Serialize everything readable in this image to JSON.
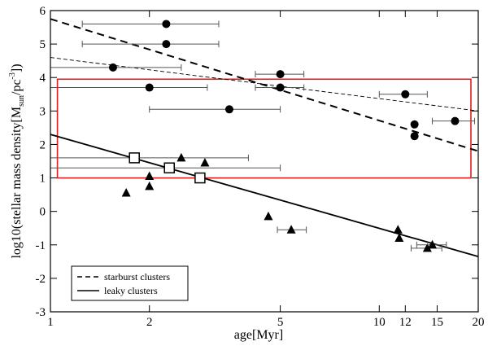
{
  "chart_data": {
    "type": "scatter",
    "xscale": "log",
    "xlabel": "age[Myr]",
    "ylabel": "log10(stellar mass density[M",
    "ylabel_sub": "sun",
    "ylabel_mid": "/pc",
    "ylabel_sup": "-3",
    "ylabel_end": "])",
    "xlim": [
      1,
      20
    ],
    "ylim": [
      -3,
      6
    ],
    "xticks": [
      {
        "value": 1,
        "label": "1"
      },
      {
        "value": 2,
        "label": "2"
      },
      {
        "value": 5,
        "label": "5"
      },
      {
        "value": 10,
        "label": "10"
      },
      {
        "value": 12,
        "label": "12"
      },
      {
        "value": 15,
        "label": "15"
      },
      {
        "value": 20,
        "label": "20"
      }
    ],
    "yticks": [
      {
        "value": -3,
        "label": "-3"
      },
      {
        "value": -2,
        "label": "-2"
      },
      {
        "value": -1,
        "label": "-1"
      },
      {
        "value": 0,
        "label": "0"
      },
      {
        "value": 1,
        "label": "1"
      },
      {
        "value": 2,
        "label": "2"
      },
      {
        "value": 3,
        "label": "3"
      },
      {
        "value": 4,
        "label": "4"
      },
      {
        "value": 5,
        "label": "5"
      },
      {
        "value": 6,
        "label": "6"
      }
    ],
    "series": [
      {
        "name": "circles",
        "marker": "circle",
        "points": [
          {
            "x": 2.25,
            "y": 5.6,
            "xerr": [
              1.25,
              3.25
            ]
          },
          {
            "x": 2.25,
            "y": 5.0,
            "xerr": [
              1.25,
              3.25
            ]
          },
          {
            "x": 1.55,
            "y": 4.3,
            "xerr": [
              1.0,
              2.5
            ]
          },
          {
            "x": 2.0,
            "y": 3.7,
            "xerr": [
              1.0,
              3.0
            ]
          },
          {
            "x": 3.5,
            "y": 3.05,
            "xerr": [
              2.0,
              5.0
            ]
          },
          {
            "x": 5.0,
            "y": 4.1,
            "xerr": [
              4.2,
              5.9
            ]
          },
          {
            "x": 5.0,
            "y": 3.7,
            "xerr": [
              4.2,
              5.9
            ]
          },
          {
            "x": 12.0,
            "y": 3.5,
            "xerr": [
              10.0,
              14.0
            ]
          },
          {
            "x": 12.8,
            "y": 2.6
          },
          {
            "x": 12.8,
            "y": 2.25
          },
          {
            "x": 17.0,
            "y": 2.7,
            "xerr": [
              14.5,
              19.5
            ]
          }
        ]
      },
      {
        "name": "squares",
        "marker": "square",
        "points": [
          {
            "x": 1.8,
            "y": 1.6,
            "xerr": [
              1.0,
              4.0
            ]
          },
          {
            "x": 2.3,
            "y": 1.3,
            "xerr": [
              1.0,
              5.0
            ]
          },
          {
            "x": 2.85,
            "y": 1.0
          }
        ]
      },
      {
        "name": "triangles",
        "marker": "triangle",
        "points": [
          {
            "x": 1.7,
            "y": 0.55
          },
          {
            "x": 2.0,
            "y": 1.05
          },
          {
            "x": 2.0,
            "y": 0.75
          },
          {
            "x": 2.5,
            "y": 1.6
          },
          {
            "x": 2.95,
            "y": 1.45
          },
          {
            "x": 4.6,
            "y": -0.15
          },
          {
            "x": 5.4,
            "y": -0.55,
            "xerr": [
              4.9,
              6.0
            ]
          },
          {
            "x": 11.4,
            "y": -0.55
          },
          {
            "x": 11.5,
            "y": -0.8
          },
          {
            "x": 14.0,
            "y": -1.1,
            "xerr": [
              12.5,
              15.5
            ]
          },
          {
            "x": 14.5,
            "y": -1.0,
            "xerr": [
              13.0,
              16.0
            ]
          }
        ]
      }
    ],
    "lines": [
      {
        "name": "starburst clusters",
        "style": "dashed",
        "from": [
          1,
          5.75
        ],
        "to": [
          20,
          1.8
        ]
      },
      {
        "name": "starburst fit (thin)",
        "style": "thin-dashed",
        "from": [
          1,
          4.6
        ],
        "to": [
          20,
          3.0
        ]
      },
      {
        "name": "leaky clusters",
        "style": "solid",
        "from": [
          1,
          2.3
        ],
        "to": [
          20,
          -1.35
        ]
      }
    ],
    "region": {
      "x": [
        1.05,
        19.0
      ],
      "y": [
        1.0,
        3.95
      ],
      "color": "#e02020"
    },
    "legend": {
      "position": "bottom-left",
      "entries": [
        {
          "label": "starburst clusters",
          "style": "dashed"
        },
        {
          "label": "leaky clusters",
          "style": "solid"
        }
      ]
    }
  }
}
